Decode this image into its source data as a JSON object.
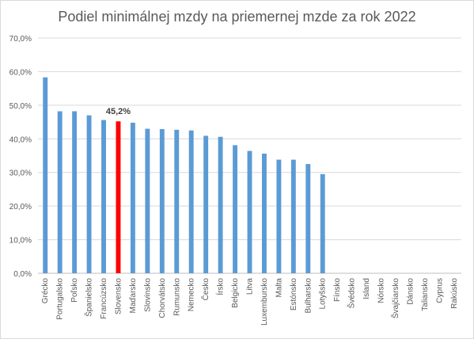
{
  "chart_data": {
    "type": "bar",
    "title": "Podiel minimálnej mzdy na priemernej mzde za rok 2022",
    "categories": [
      "Grécko",
      "Portugalsko",
      "Poľsko",
      "Španielsko",
      "Francúzsko",
      "Slovensko",
      "Maďarsko",
      "Slovinsko",
      "Chorvátsko",
      "Rumunsko",
      "Nemecko",
      "Česko",
      "Írsko",
      "Belgicko",
      "Litva",
      "Luxembursko",
      "Malta",
      "Estónsko",
      "Bulharsko",
      "Lotyšsko",
      "Fínsko",
      "Švédsko",
      "Island",
      "Nórsko",
      "Švajčiarsko",
      "Dánsko",
      "Taliansko",
      "Cyprus",
      "Rakúsko"
    ],
    "values": [
      58.3,
      48.2,
      48.2,
      47.0,
      45.6,
      45.2,
      44.8,
      43.0,
      42.9,
      42.7,
      42.5,
      40.9,
      40.6,
      38.1,
      36.4,
      35.6,
      33.8,
      33.8,
      32.5,
      29.5,
      null,
      null,
      null,
      null,
      null,
      null,
      null,
      null,
      null
    ],
    "highlight": {
      "category": "Slovensko",
      "label": "45,2%",
      "color": "#ff0000"
    },
    "bar_color": "#5b9bd5",
    "y_ticks": [
      "0,0%",
      "10,0%",
      "20,0%",
      "30,0%",
      "40,0%",
      "50,0%",
      "60,0%",
      "70,0%"
    ],
    "ylim": [
      0,
      70
    ],
    "grid": true,
    "legend": "none",
    "xlabel": "",
    "ylabel": ""
  }
}
